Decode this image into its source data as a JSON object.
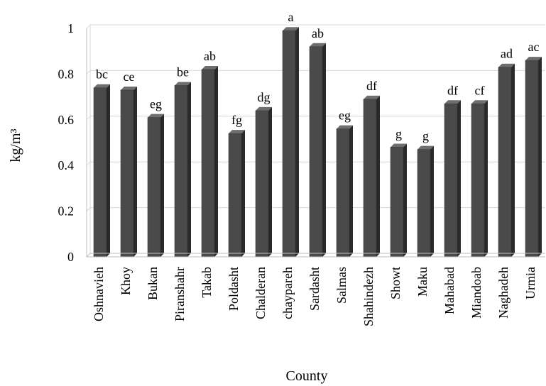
{
  "chart_data": {
    "type": "bar",
    "title": "",
    "xlabel": "County",
    "ylabel": "kg/m³",
    "ylim": [
      0,
      1
    ],
    "yticks": [
      "0",
      "0.2",
      "0.4",
      "0.6",
      "0.8",
      "1"
    ],
    "grid": true,
    "bar_color": "#4a4a4a",
    "categories": [
      "Oshnavieh",
      "Khoy",
      "Bukan",
      "Piranshahr",
      "Takab",
      "Poldasht",
      "Chalderan",
      "chaypareh",
      "Sardasht",
      "Salmas",
      "Shahindezh",
      "Showt",
      "Maku",
      "Mahabad",
      "Miandoab",
      "Naghadeh",
      "Urmia"
    ],
    "values": [
      0.74,
      0.73,
      0.61,
      0.75,
      0.82,
      0.54,
      0.64,
      0.99,
      0.92,
      0.56,
      0.69,
      0.48,
      0.47,
      0.67,
      0.67,
      0.83,
      0.86
    ],
    "annotations": [
      "bc",
      "ce",
      "eg",
      "be",
      "ab",
      "fg",
      "dg",
      "a",
      "ab",
      "eg",
      "df",
      "g",
      "g",
      "df",
      "cf",
      "ad",
      "ac"
    ]
  }
}
